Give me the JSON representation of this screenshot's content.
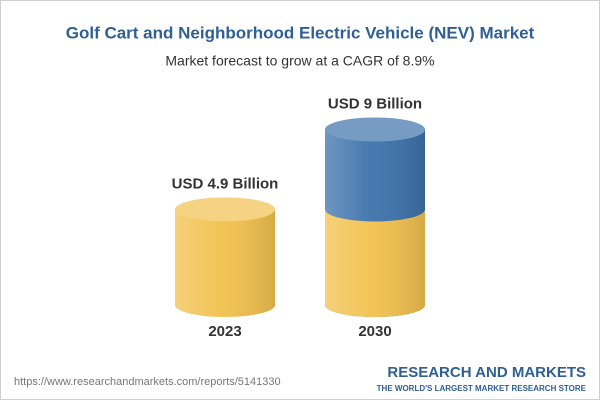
{
  "chart_data": {
    "type": "cylinder-bar",
    "title": "Golf Cart and Neighborhood Electric Vehicle (NEV) Market",
    "subtitle": "Market forecast to grow at a CAGR of 8.9%",
    "categories": [
      "2023",
      "2030"
    ],
    "values": [
      4.9,
      9
    ],
    "value_labels": [
      "USD 4.9 Billion",
      "USD 9 Billion"
    ],
    "base_color": "#f2c14e",
    "growth_color": "#3d72ab"
  },
  "footer": {
    "url": "https://www.researchandmarkets.com/reports/5141330",
    "brand": "RESEARCH AND MARKETS",
    "tagline": "THE WORLD'S LARGEST MARKET RESEARCH STORE"
  }
}
